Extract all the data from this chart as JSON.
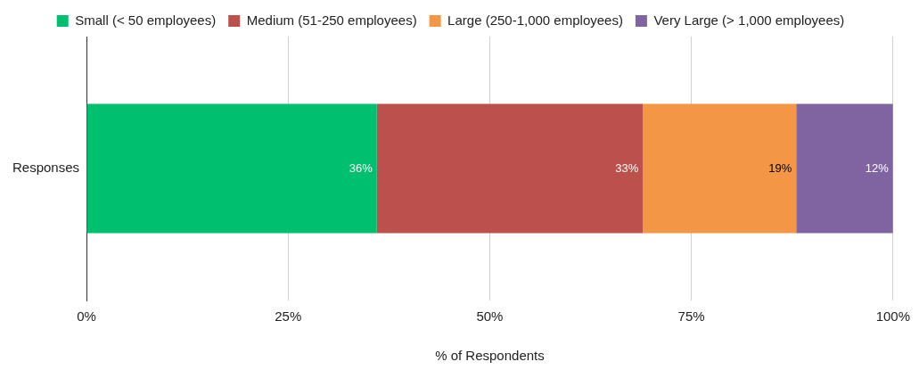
{
  "chart_data": {
    "type": "bar",
    "orientation": "horizontal",
    "stacked": true,
    "categories": [
      "Responses"
    ],
    "series": [
      {
        "name": "Small (< 50 employees)",
        "color": "#00bf6f",
        "values": [
          36
        ],
        "value_labels": [
          "36%"
        ]
      },
      {
        "name": "Medium (51-250 employees)",
        "color": "#bc504c",
        "values": [
          33
        ],
        "value_labels": [
          "33%"
        ]
      },
      {
        "name": "Large (250-1,000 employees)",
        "color": "#f39646",
        "values": [
          19
        ],
        "value_labels": [
          "19%"
        ]
      },
      {
        "name": "Very Large (> 1,000 employees)",
        "color": "#8064a2",
        "values": [
          12
        ],
        "value_labels": [
          "12%"
        ]
      }
    ],
    "xlim": [
      0,
      100
    ],
    "xticks": [
      {
        "value": 0,
        "label": "0%"
      },
      {
        "value": 25,
        "label": "25%"
      },
      {
        "value": 50,
        "label": "50%"
      },
      {
        "value": 75,
        "label": "75%"
      },
      {
        "value": 100,
        "label": "100%"
      }
    ],
    "xlabel": "% of Respondents",
    "grid": "x",
    "legend": "top"
  }
}
